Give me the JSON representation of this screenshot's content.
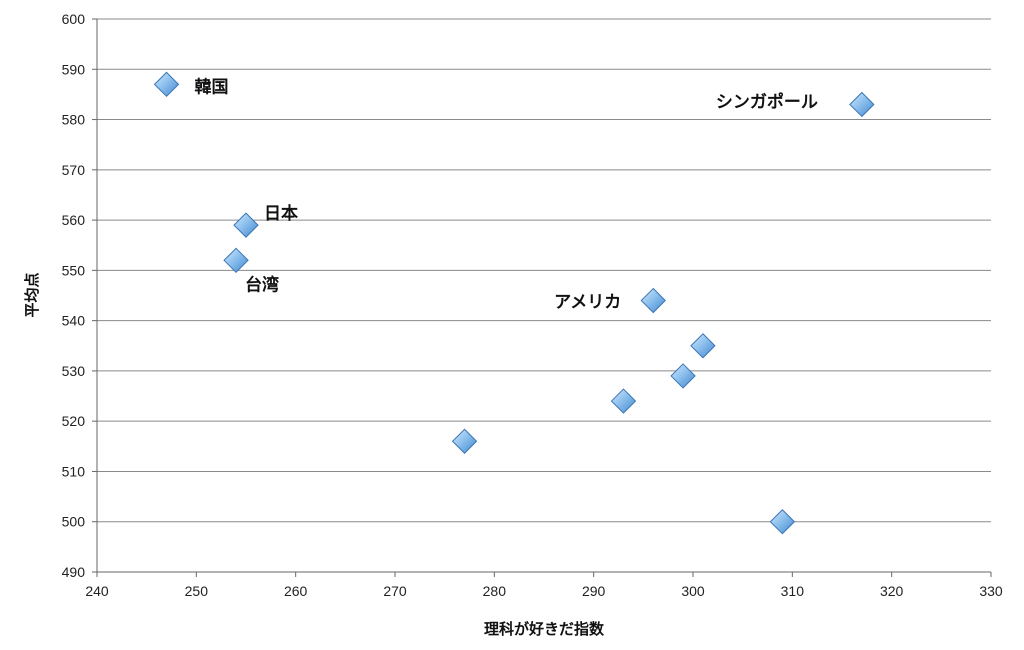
{
  "chart_data": {
    "type": "scatter",
    "xlabel": "理科が好きだ指数",
    "ylabel": "平均点",
    "xlim": [
      240,
      330
    ],
    "ylim": [
      490,
      600
    ],
    "x_ticks": [
      240,
      250,
      260,
      270,
      280,
      290,
      300,
      310,
      320,
      330
    ],
    "y_ticks": [
      490,
      500,
      510,
      520,
      530,
      540,
      550,
      560,
      570,
      580,
      590,
      600
    ],
    "grid": "horizontal",
    "marker": "diamond",
    "marker_color": "#6fa8dc",
    "points": [
      {
        "x": 247,
        "y": 587,
        "label": "韓国"
      },
      {
        "x": 317,
        "y": 583,
        "label": "シンガポール"
      },
      {
        "x": 255,
        "y": 559,
        "label": "日本"
      },
      {
        "x": 254,
        "y": 552,
        "label": "台湾"
      },
      {
        "x": 296,
        "y": 544,
        "label": "アメリカ"
      },
      {
        "x": 301,
        "y": 535,
        "label": ""
      },
      {
        "x": 299,
        "y": 529,
        "label": ""
      },
      {
        "x": 293,
        "y": 524,
        "label": ""
      },
      {
        "x": 277,
        "y": 516,
        "label": ""
      },
      {
        "x": 309,
        "y": 500,
        "label": ""
      }
    ]
  }
}
